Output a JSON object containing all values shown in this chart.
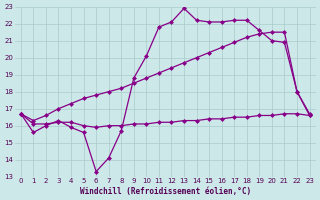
{
  "xlabel": "Windchill (Refroidissement éolien,°C)",
  "xlim": [
    -0.5,
    23.5
  ],
  "ylim": [
    13,
    23
  ],
  "yticks": [
    13,
    14,
    15,
    16,
    17,
    18,
    19,
    20,
    21,
    22,
    23
  ],
  "xticks": [
    0,
    1,
    2,
    3,
    4,
    5,
    6,
    7,
    8,
    9,
    10,
    11,
    12,
    13,
    14,
    15,
    16,
    17,
    18,
    19,
    20,
    21,
    22,
    23
  ],
  "bg_color": "#cce8e8",
  "grid_color": "#aacccc",
  "line_color": "#880088",
  "line1_x": [
    0,
    1,
    2,
    3,
    4,
    5,
    6,
    7,
    8,
    9,
    10,
    11,
    12,
    13,
    14,
    15,
    16,
    17,
    18,
    19,
    20,
    21,
    22,
    23
  ],
  "line1_y": [
    16.7,
    15.6,
    16.0,
    16.3,
    15.9,
    15.6,
    13.3,
    14.1,
    15.7,
    18.8,
    20.1,
    21.8,
    22.1,
    22.9,
    22.2,
    22.1,
    22.1,
    22.2,
    22.2,
    21.6,
    21.0,
    20.9,
    18.0,
    16.7
  ],
  "line2_x": [
    0,
    1,
    2,
    3,
    4,
    5,
    6,
    7,
    8,
    9,
    10,
    11,
    12,
    13,
    14,
    15,
    16,
    17,
    18,
    19,
    20,
    21,
    22,
    23
  ],
  "line2_y": [
    16.7,
    16.3,
    16.6,
    17.0,
    17.3,
    17.6,
    17.8,
    18.0,
    18.2,
    18.5,
    18.8,
    19.1,
    19.4,
    19.7,
    20.0,
    20.3,
    20.6,
    20.9,
    21.2,
    21.4,
    21.5,
    21.5,
    18.0,
    16.6
  ],
  "line3_x": [
    0,
    1,
    2,
    3,
    4,
    5,
    6,
    7,
    8,
    9,
    10,
    11,
    12,
    13,
    14,
    15,
    16,
    17,
    18,
    19,
    20,
    21,
    22,
    23
  ],
  "line3_y": [
    16.7,
    16.1,
    16.1,
    16.2,
    16.2,
    16.0,
    15.9,
    16.0,
    16.0,
    16.1,
    16.1,
    16.2,
    16.2,
    16.3,
    16.3,
    16.4,
    16.4,
    16.5,
    16.5,
    16.6,
    16.6,
    16.7,
    16.7,
    16.6
  ],
  "marker": "D",
  "marker_size": 2.5,
  "linewidth": 0.9
}
